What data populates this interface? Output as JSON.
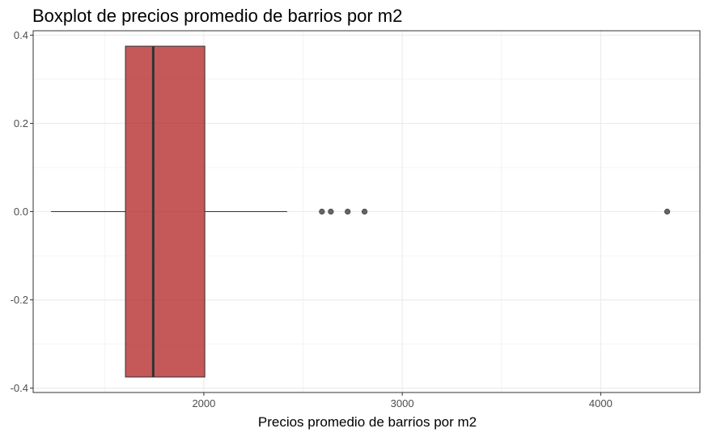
{
  "chart_data": {
    "type": "boxplot",
    "orientation": "horizontal",
    "title": "Boxplot de precios promedio de barrios por m2",
    "xlabel": "Precios promedio de barrios por m2",
    "ylabel": "",
    "xlim": [
      1140,
      4500
    ],
    "ylim": [
      -0.41,
      0.41
    ],
    "x_ticks": [
      2000,
      3000,
      4000
    ],
    "x_tick_labels": [
      "2000",
      "3000",
      "4000"
    ],
    "y_ticks": [
      0.4,
      0.2,
      0.0,
      -0.2,
      -0.4
    ],
    "y_tick_labels": [
      "0.4",
      "0.2",
      "0.0",
      "-0.2",
      "-0.4"
    ],
    "grid": true,
    "theme": "bw",
    "box": {
      "whisker_low": 1230,
      "q1": 1605,
      "median": 1745,
      "q3": 2005,
      "whisker_high": 2420,
      "half_width": 0.375,
      "fill": "#b22222",
      "fill_opacity": 0.75,
      "outline": "#333333"
    },
    "outliers": [
      2595,
      2640,
      2725,
      2810,
      4335
    ],
    "colors": {
      "grid_major": "#ebebeb",
      "panel_border": "#333333",
      "outlier": "#333333"
    }
  }
}
